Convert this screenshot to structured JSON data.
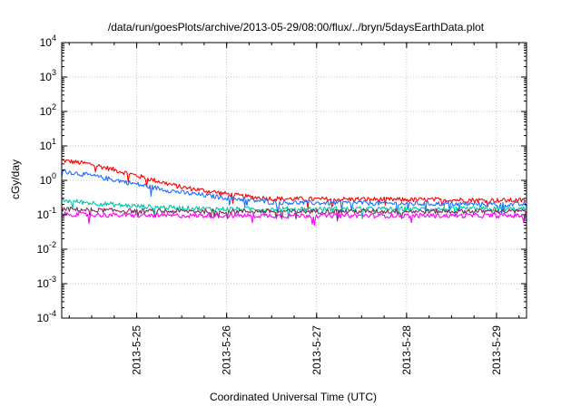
{
  "chart_data": {
    "type": "line",
    "title": "/data/run/goesPlots/archive/2013-05-29/08:00/flux/../bryn/5daysEarthData.plot",
    "xlabel": "Coordinated Universal Time (UTC)",
    "ylabel": "cGy/day",
    "x_range": [
      "2013-05-24 04:00",
      "2013-05-29 08:00"
    ],
    "x_ticks": [
      "2013-5-25",
      "2013-5-26",
      "2013-5-27",
      "2013-5-28",
      "2013-5-29"
    ],
    "y_scale": "log",
    "ylim": [
      0.0001,
      10000
    ],
    "y_ticks": [
      {
        "base": "10",
        "exp": "-4",
        "value": 0.0001
      },
      {
        "base": "10",
        "exp": "-3",
        "value": 0.001
      },
      {
        "base": "10",
        "exp": "-2",
        "value": 0.01
      },
      {
        "base": "10",
        "exp": "-1",
        "value": 0.1
      },
      {
        "base": "10",
        "exp": "0",
        "value": 1
      },
      {
        "base": "10",
        "exp": "1",
        "value": 10
      },
      {
        "base": "10",
        "exp": "2",
        "value": 100
      },
      {
        "base": "10",
        "exp": "3",
        "value": 1000
      },
      {
        "base": "10",
        "exp": "4",
        "value": 10000
      }
    ],
    "grid": true,
    "legend": "none",
    "series": [
      {
        "color": "#ff0000",
        "x": [
          "2013-05-24 04:00",
          "2013-05-24 12:00",
          "2013-05-24 20:00",
          "2013-05-25 04:00",
          "2013-05-25 12:00",
          "2013-05-25 20:00",
          "2013-05-26 04:00",
          "2013-05-26 12:00",
          "2013-05-27 00:00",
          "2013-05-27 12:00",
          "2013-05-28 00:00",
          "2013-05-28 12:00",
          "2013-05-29 00:00",
          "2013-05-29 08:00"
        ],
        "values": [
          3.6,
          2.8,
          1.7,
          1.0,
          0.6,
          0.45,
          0.33,
          0.28,
          0.27,
          0.27,
          0.26,
          0.26,
          0.25,
          0.25
        ]
      },
      {
        "color": "#1f6fff",
        "x": [
          "2013-05-24 04:00",
          "2013-05-24 12:00",
          "2013-05-24 20:00",
          "2013-05-25 04:00",
          "2013-05-25 12:00",
          "2013-05-25 20:00",
          "2013-05-26 04:00",
          "2013-05-26 12:00",
          "2013-05-27 00:00",
          "2013-05-27 12:00",
          "2013-05-28 00:00",
          "2013-05-28 12:00",
          "2013-05-29 00:00",
          "2013-05-29 08:00"
        ],
        "values": [
          1.8,
          1.3,
          0.9,
          0.6,
          0.42,
          0.33,
          0.27,
          0.22,
          0.21,
          0.21,
          0.2,
          0.2,
          0.19,
          0.19
        ]
      },
      {
        "color": "#00c8a0",
        "x": [
          "2013-05-24 04:00",
          "2013-05-24 12:00",
          "2013-05-24 20:00",
          "2013-05-25 04:00",
          "2013-05-25 12:00",
          "2013-05-25 20:00",
          "2013-05-26 04:00",
          "2013-05-26 12:00",
          "2013-05-27 00:00",
          "2013-05-27 12:00",
          "2013-05-28 00:00",
          "2013-05-28 12:00",
          "2013-05-29 00:00",
          "2013-05-29 08:00"
        ],
        "values": [
          0.25,
          0.21,
          0.18,
          0.16,
          0.15,
          0.14,
          0.14,
          0.14,
          0.14,
          0.14,
          0.14,
          0.14,
          0.14,
          0.14
        ]
      },
      {
        "color": "#7b2d5f",
        "x": [
          "2013-05-24 04:00",
          "2013-05-24 12:00",
          "2013-05-24 20:00",
          "2013-05-25 04:00",
          "2013-05-25 12:00",
          "2013-05-25 20:00",
          "2013-05-26 04:00",
          "2013-05-26 12:00",
          "2013-05-27 00:00",
          "2013-05-27 12:00",
          "2013-05-28 00:00",
          "2013-05-28 12:00",
          "2013-05-29 00:00",
          "2013-05-29 08:00"
        ],
        "values": [
          0.14,
          0.13,
          0.125,
          0.12,
          0.12,
          0.12,
          0.12,
          0.12,
          0.12,
          0.12,
          0.12,
          0.12,
          0.12,
          0.12
        ]
      },
      {
        "color": "#ff00ff",
        "x": [
          "2013-05-24 04:00",
          "2013-05-24 12:00",
          "2013-05-24 20:00",
          "2013-05-25 04:00",
          "2013-05-25 12:00",
          "2013-05-25 20:00",
          "2013-05-26 04:00",
          "2013-05-26 12:00",
          "2013-05-27 00:00",
          "2013-05-27 12:00",
          "2013-05-28 00:00",
          "2013-05-28 12:00",
          "2013-05-29 00:00",
          "2013-05-29 08:00"
        ],
        "values": [
          0.1,
          0.095,
          0.092,
          0.09,
          0.09,
          0.09,
          0.09,
          0.09,
          0.09,
          0.09,
          0.09,
          0.09,
          0.09,
          0.09
        ]
      }
    ]
  }
}
